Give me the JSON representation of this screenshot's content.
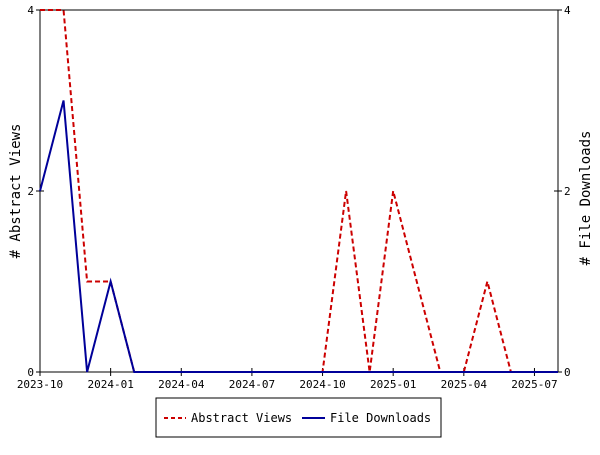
{
  "chart_data": {
    "type": "line",
    "title": "",
    "xlabel": "",
    "ylabel_left": "# Abstract Views",
    "ylabel_right": "# File Downloads",
    "ylim_left": [
      0,
      4
    ],
    "ylim_right": [
      0,
      4
    ],
    "yticks_left": [
      0,
      2,
      4
    ],
    "yticks_right": [
      0,
      2,
      4
    ],
    "xlim": [
      "2023-10",
      "2025-08"
    ],
    "xticks": [
      "2023-10",
      "2024-01",
      "2024-04",
      "2024-07",
      "2024-10",
      "2025-01",
      "2025-04",
      "2025-07"
    ],
    "x": [
      "2023-10",
      "2023-11",
      "2023-12",
      "2024-01",
      "2024-02",
      "2024-03",
      "2024-04",
      "2024-05",
      "2024-06",
      "2024-07",
      "2024-08",
      "2024-09",
      "2024-10",
      "2024-11",
      "2024-12",
      "2025-01",
      "2025-02",
      "2025-03",
      "2025-04",
      "2025-05",
      "2025-06",
      "2025-07",
      "2025-08"
    ],
    "legend_position": "bottom",
    "grid": false,
    "series": [
      {
        "name": "Abstract Views",
        "color": "#cc0000",
        "dash": true,
        "step": true,
        "axis": "left",
        "values": [
          4,
          4,
          1,
          1,
          0,
          0,
          0,
          0,
          0,
          0,
          0,
          0,
          0,
          2,
          0,
          2,
          1,
          0,
          0,
          1,
          0,
          0,
          0
        ]
      },
      {
        "name": "File Downloads",
        "color": "#000099",
        "dash": false,
        "step": false,
        "axis": "right",
        "values": [
          2,
          3,
          0,
          1,
          0,
          0,
          0,
          0,
          0,
          0,
          0,
          0,
          0,
          0,
          0,
          0,
          0,
          0,
          0,
          0,
          0,
          0,
          0
        ]
      }
    ]
  }
}
